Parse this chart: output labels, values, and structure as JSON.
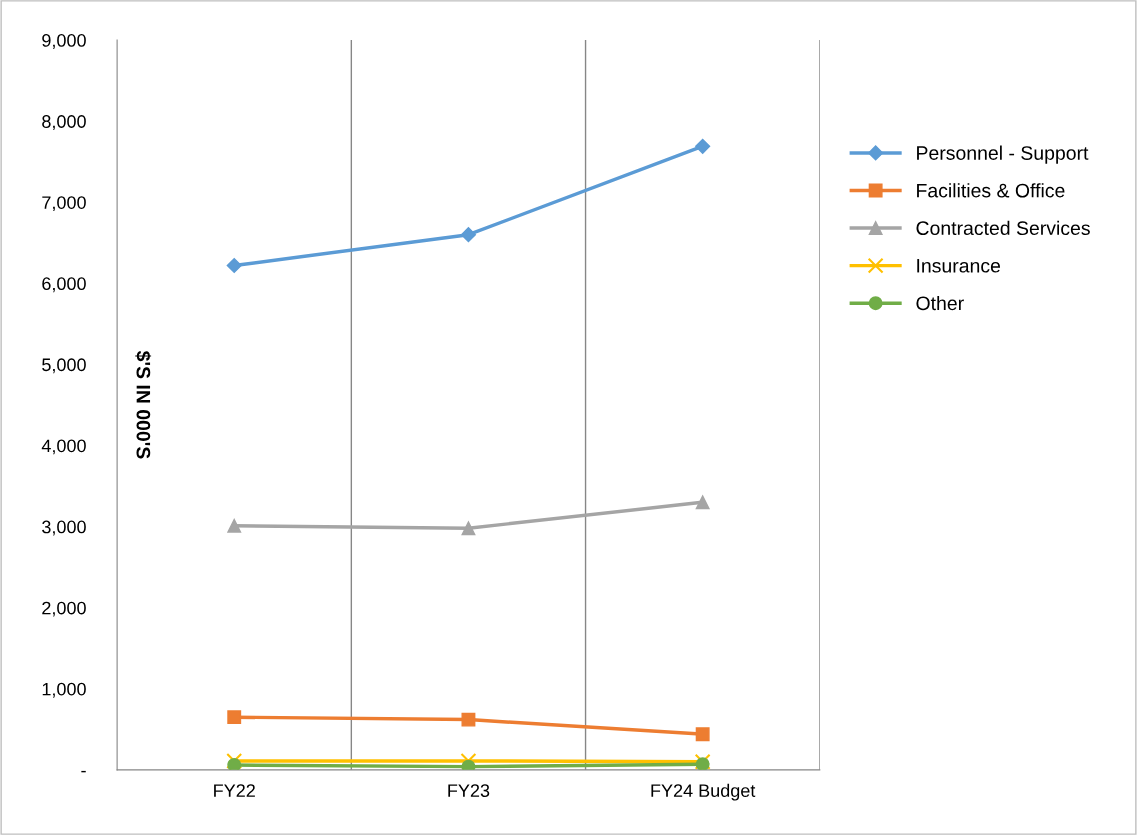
{
  "chart_data": {
    "type": "line",
    "ylabel": "$'S IN 000'S",
    "categories": [
      "FY22",
      "FY23",
      "FY24 Budget"
    ],
    "series": [
      {
        "name": "Personnel - Support",
        "color": "#5b9bd5",
        "marker": "diamond",
        "values": [
          6220,
          6600,
          7690
        ]
      },
      {
        "name": "Facilities & Office",
        "color": "#ed7d31",
        "marker": "square",
        "values": [
          650,
          620,
          440
        ]
      },
      {
        "name": "Contracted Services",
        "color": "#a5a5a5",
        "marker": "triangle",
        "values": [
          3010,
          2980,
          3300
        ]
      },
      {
        "name": "Insurance",
        "color": "#ffc000",
        "marker": "cross",
        "values": [
          110,
          110,
          100
        ]
      },
      {
        "name": "Other",
        "color": "#70ad47",
        "marker": "circle",
        "values": [
          60,
          40,
          70
        ]
      }
    ],
    "ylim": [
      0,
      9000
    ],
    "yticks": [
      {
        "value": 0,
        "label": "-"
      },
      {
        "value": 1000,
        "label": "1,000"
      },
      {
        "value": 2000,
        "label": "2,000"
      },
      {
        "value": 3000,
        "label": "3,000"
      },
      {
        "value": 4000,
        "label": "4,000"
      },
      {
        "value": 5000,
        "label": "5,000"
      },
      {
        "value": 6000,
        "label": "6,000"
      },
      {
        "value": 7000,
        "label": "7,000"
      },
      {
        "value": 8000,
        "label": "8,000"
      },
      {
        "value": 9000,
        "label": "9,000"
      }
    ],
    "grid": "x",
    "legend": "right",
    "line_style": "solid"
  }
}
